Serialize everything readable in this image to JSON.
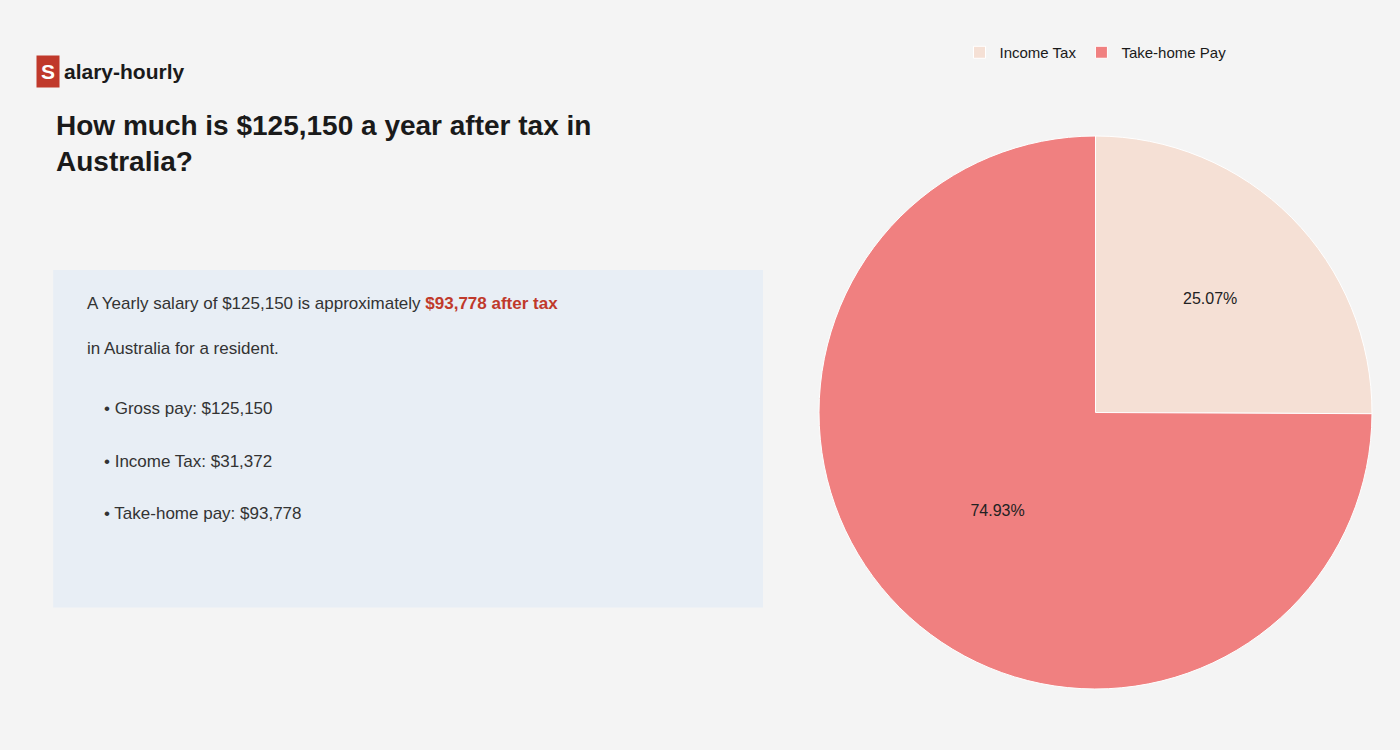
{
  "chart_data": {
    "type": "pie",
    "title": "How much is $125,150 a year after tax in\nAustralia?",
    "annotations": [
      "S",
      "alary-hourly",
      "A Yearly salary of $125,150 is approximately ",
      "$93,778 after tax",
      "in Australia for a resident.",
      "• Gross pay: $125,150",
      "• Income Tax: $31,372",
      "• Take-home pay: $93,778"
    ],
    "categories": [
      "Income Tax",
      "Take-home Pay"
    ],
    "values": [
      25.07,
      74.93
    ],
    "value_labels": [
      "25.07%",
      "74.93%"
    ],
    "data_labels": true,
    "colors": [
      "#f5e0d5",
      "#f08080"
    ],
    "legend": "top"
  }
}
